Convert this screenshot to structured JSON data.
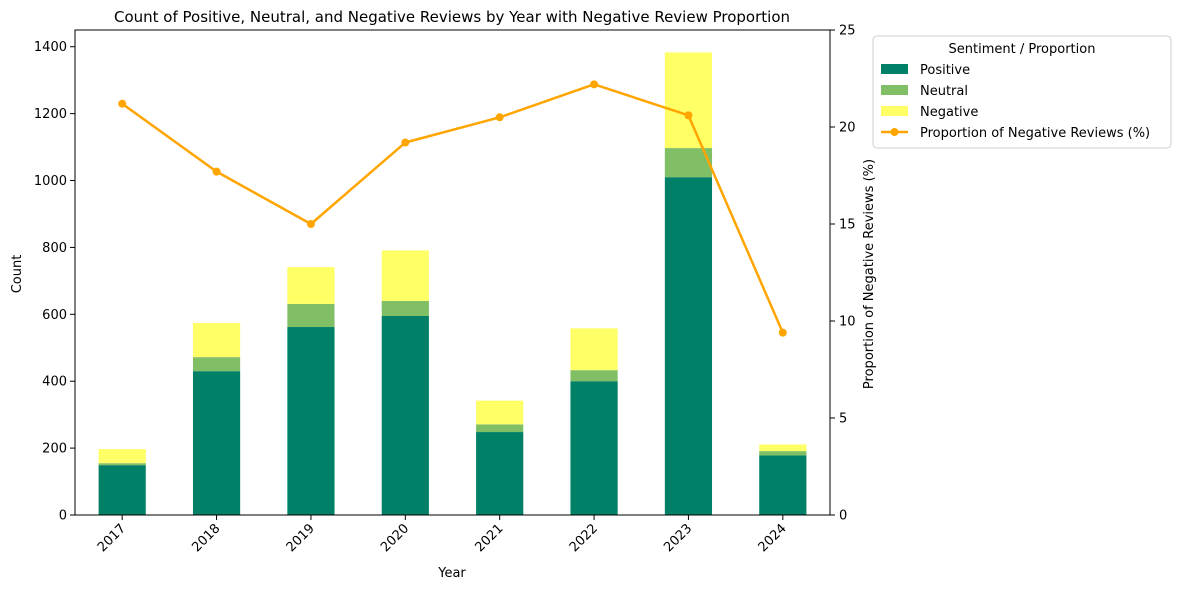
{
  "chart_data": {
    "type": "bar",
    "stacked": true,
    "title": "Count of Positive, Neutral, and Negative Reviews by Year with Negative Review Proportion",
    "xlabel": "Year",
    "ylabel": "Count",
    "y2label": "Proportion of Negative Reviews (%)",
    "categories": [
      "2017",
      "2018",
      "2019",
      "2020",
      "2021",
      "2022",
      "2023",
      "2024"
    ],
    "series": [
      {
        "name": "Positive",
        "color": "#008066",
        "values": [
          149,
          430,
          562,
          595,
          248,
          400,
          1010,
          178
        ]
      },
      {
        "name": "Neutral",
        "color": "#80bf66",
        "values": [
          6,
          42,
          69,
          45,
          23,
          33,
          87,
          13
        ]
      },
      {
        "name": "Negative",
        "color": "#ffff66",
        "values": [
          42,
          102,
          110,
          151,
          71,
          125,
          286,
          20
        ]
      }
    ],
    "line": {
      "name": "Proportion of Negative Reviews (%)",
      "color": "#ffa500",
      "axis": "secondary",
      "values": [
        21.2,
        17.7,
        15.0,
        19.2,
        20.5,
        22.2,
        20.6,
        9.4
      ]
    },
    "ylim": [
      0,
      1450
    ],
    "yticks": [
      0,
      200,
      400,
      600,
      800,
      1000,
      1200,
      1400
    ],
    "y2lim": [
      0,
      25
    ],
    "y2ticks": [
      0,
      5,
      10,
      15,
      20,
      25
    ],
    "grid": false,
    "legend": {
      "title": "Sentiment / Proportion",
      "placement": "outside-top-right"
    }
  }
}
